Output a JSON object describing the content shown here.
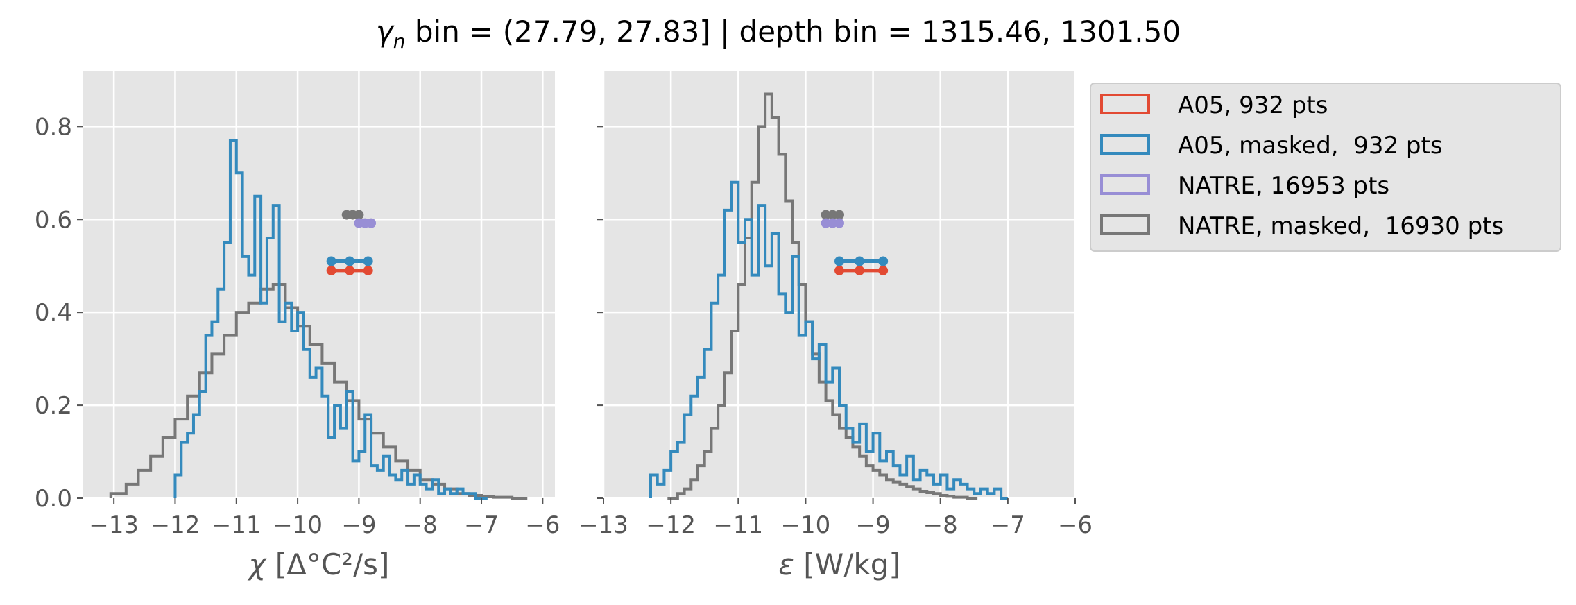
{
  "figure": {
    "title_symbol": "γ",
    "title_sub": "n",
    "title_rest": " bin = (27.79, 27.83] | depth bin = 1315.46, 1301.50"
  },
  "colors": {
    "A05": "#E24A33",
    "A05_masked": "#348ABD",
    "NATRE": "#988ED5",
    "NATRE_masked": "#777777",
    "axes_bg": "#E5E5E5",
    "grid": "#FFFFFF",
    "tick_text": "#555555"
  },
  "legend": {
    "placement": "outside right, top",
    "entries": [
      {
        "label": "A05, 932 pts",
        "color_key": "A05"
      },
      {
        "label": "A05, masked,  932 pts",
        "color_key": "A05_masked"
      },
      {
        "label": "NATRE, 16953 pts",
        "color_key": "NATRE"
      },
      {
        "label": "NATRE, masked,  16930 pts",
        "color_key": "NATRE_masked"
      }
    ]
  },
  "chart_data": [
    {
      "type": "histogram-step",
      "panel": "left",
      "xlabel_symbol": "χ",
      "xlabel_rest": " [Δ°C²/s]",
      "ylabel": "",
      "xlim": [
        -13.5,
        -5.8
      ],
      "ylim": [
        0,
        0.92
      ],
      "xticks": [
        -13,
        -12,
        -11,
        -10,
        -9,
        -8,
        -7,
        -6
      ],
      "xtick_labels": [
        "−13",
        "−12",
        "−11",
        "−10",
        "−9",
        "−8",
        "−7",
        "−6"
      ],
      "yticks": [
        0.0,
        0.2,
        0.4,
        0.6,
        0.8
      ],
      "ytick_labels": [
        "0.0",
        "0.2",
        "0.4",
        "0.6",
        "0.8"
      ],
      "grid": true,
      "series": [
        {
          "name": "NATRE, masked,  16930 pts",
          "color_key": "NATRE_masked",
          "x": [
            -13.05,
            -12.8,
            -12.6,
            -12.4,
            -12.2,
            -12.0,
            -11.8,
            -11.6,
            -11.4,
            -11.2,
            -11.0,
            -10.8,
            -10.6,
            -10.4,
            -10.2,
            -10.0,
            -9.8,
            -9.6,
            -9.4,
            -9.2,
            -9.0,
            -8.8,
            -8.6,
            -8.4,
            -8.2,
            -8.0,
            -7.8,
            -7.6,
            -7.4,
            -7.2,
            -7.0,
            -6.8,
            -6.5
          ],
          "y": [
            0.01,
            0.03,
            0.06,
            0.09,
            0.13,
            0.17,
            0.22,
            0.27,
            0.31,
            0.35,
            0.4,
            0.42,
            0.45,
            0.46,
            0.41,
            0.37,
            0.33,
            0.29,
            0.25,
            0.21,
            0.17,
            0.14,
            0.11,
            0.08,
            0.06,
            0.04,
            0.03,
            0.02,
            0.01,
            0.006,
            0.003,
            0.002,
            0.0
          ]
        },
        {
          "name": "A05, masked,  932 pts",
          "color_key": "A05_masked",
          "x": [
            -12.0,
            -11.9,
            -11.8,
            -11.7,
            -11.6,
            -11.5,
            -11.4,
            -11.3,
            -11.2,
            -11.1,
            -11.0,
            -10.9,
            -10.8,
            -10.7,
            -10.6,
            -10.5,
            -10.4,
            -10.3,
            -10.2,
            -10.1,
            -10.0,
            -9.9,
            -9.8,
            -9.7,
            -9.6,
            -9.5,
            -9.4,
            -9.3,
            -9.2,
            -9.1,
            -9.0,
            -8.9,
            -8.8,
            -8.7,
            -8.6,
            -8.5,
            -8.4,
            -8.3,
            -8.2,
            -8.1,
            -8.0,
            -7.9,
            -7.8,
            -7.7,
            -7.6,
            -7.5,
            -7.4,
            -7.3,
            -7.2,
            -7.1,
            -7.0
          ],
          "y": [
            0.05,
            0.12,
            0.14,
            0.18,
            0.23,
            0.35,
            0.38,
            0.45,
            0.55,
            0.77,
            0.7,
            0.52,
            0.48,
            0.65,
            0.42,
            0.56,
            0.63,
            0.38,
            0.42,
            0.36,
            0.4,
            0.32,
            0.26,
            0.28,
            0.22,
            0.13,
            0.2,
            0.15,
            0.23,
            0.08,
            0.1,
            0.18,
            0.07,
            0.06,
            0.09,
            0.05,
            0.04,
            0.06,
            0.03,
            0.05,
            0.03,
            0.02,
            0.04,
            0.01,
            0.02,
            0.01,
            0.02,
            0.01,
            0.01,
            0.0,
            0.0
          ]
        }
      ],
      "error_bars": [
        {
          "name": "NATRE, masked,  16930 pts",
          "color_key": "NATRE_masked",
          "y": 0.61,
          "x": [
            -9.2,
            -9.1,
            -9.0
          ]
        },
        {
          "name": "NATRE, 16953 pts",
          "color_key": "NATRE",
          "y": 0.592,
          "x": [
            -9.0,
            -8.9,
            -8.8
          ]
        },
        {
          "name": "A05, masked,  932 pts",
          "color_key": "A05_masked",
          "y": 0.51,
          "x": [
            -9.45,
            -9.15,
            -8.85
          ]
        },
        {
          "name": "A05, 932 pts",
          "color_key": "A05",
          "y": 0.49,
          "x": [
            -9.45,
            -9.15,
            -8.85
          ]
        }
      ]
    },
    {
      "type": "histogram-step",
      "panel": "right",
      "xlabel_symbol": "ε",
      "xlabel_rest": " [W/kg]",
      "ylabel": "",
      "xlim": [
        -13.0,
        -6.0
      ],
      "ylim": [
        0,
        0.92
      ],
      "xticks": [
        -13,
        -12,
        -11,
        -10,
        -9,
        -8,
        -7,
        -6
      ],
      "xtick_labels": [
        "−13",
        "−12",
        "−11",
        "−10",
        "−9",
        "−8",
        "−7",
        "−6"
      ],
      "yticks": [
        0.0,
        0.2,
        0.4,
        0.6,
        0.8
      ],
      "grid": true,
      "series": [
        {
          "name": "NATRE, masked,  16930 pts",
          "color_key": "NATRE_masked",
          "x": [
            -12.05,
            -11.9,
            -11.8,
            -11.7,
            -11.6,
            -11.5,
            -11.4,
            -11.3,
            -11.2,
            -11.1,
            -11.0,
            -10.9,
            -10.8,
            -10.7,
            -10.6,
            -10.5,
            -10.4,
            -10.3,
            -10.2,
            -10.1,
            -10.0,
            -9.9,
            -9.8,
            -9.7,
            -9.6,
            -9.5,
            -9.4,
            -9.3,
            -9.2,
            -9.1,
            -9.0,
            -8.9,
            -8.8,
            -8.7,
            -8.6,
            -8.5,
            -8.4,
            -8.3,
            -8.2,
            -8.1,
            -8.0,
            -7.9,
            -7.8,
            -7.6
          ],
          "y": [
            0.0,
            0.01,
            0.02,
            0.04,
            0.07,
            0.1,
            0.15,
            0.2,
            0.27,
            0.36,
            0.46,
            0.56,
            0.68,
            0.8,
            0.87,
            0.82,
            0.74,
            0.64,
            0.55,
            0.46,
            0.38,
            0.31,
            0.25,
            0.21,
            0.18,
            0.15,
            0.13,
            0.11,
            0.09,
            0.07,
            0.06,
            0.05,
            0.04,
            0.035,
            0.03,
            0.025,
            0.02,
            0.015,
            0.012,
            0.01,
            0.006,
            0.004,
            0.002,
            0.0
          ]
        },
        {
          "name": "A05, masked,  932 pts",
          "color_key": "A05_masked",
          "x": [
            -12.3,
            -12.2,
            -12.1,
            -12.0,
            -11.9,
            -11.8,
            -11.7,
            -11.6,
            -11.5,
            -11.4,
            -11.3,
            -11.2,
            -11.1,
            -11.0,
            -10.9,
            -10.8,
            -10.7,
            -10.6,
            -10.5,
            -10.4,
            -10.3,
            -10.2,
            -10.1,
            -10.0,
            -9.9,
            -9.8,
            -9.7,
            -9.6,
            -9.5,
            -9.4,
            -9.3,
            -9.2,
            -9.1,
            -9.0,
            -8.9,
            -8.8,
            -8.7,
            -8.6,
            -8.5,
            -8.4,
            -8.3,
            -8.2,
            -8.1,
            -8.0,
            -7.9,
            -7.8,
            -7.7,
            -7.6,
            -7.5,
            -7.4,
            -7.3,
            -7.2,
            -7.1
          ],
          "y": [
            0.05,
            0.03,
            0.06,
            0.1,
            0.12,
            0.18,
            0.22,
            0.26,
            0.32,
            0.42,
            0.48,
            0.62,
            0.68,
            0.55,
            0.6,
            0.48,
            0.63,
            0.5,
            0.57,
            0.44,
            0.4,
            0.52,
            0.35,
            0.38,
            0.3,
            0.33,
            0.25,
            0.28,
            0.2,
            0.15,
            0.12,
            0.16,
            0.1,
            0.14,
            0.08,
            0.1,
            0.07,
            0.05,
            0.09,
            0.04,
            0.06,
            0.05,
            0.03,
            0.05,
            0.02,
            0.04,
            0.03,
            0.02,
            0.01,
            0.02,
            0.01,
            0.02,
            0.0
          ]
        }
      ],
      "error_bars": [
        {
          "name": "NATRE, masked,  16930 pts",
          "color_key": "NATRE_masked",
          "y": 0.61,
          "x": [
            -9.7,
            -9.6,
            -9.5
          ]
        },
        {
          "name": "NATRE, 16953 pts",
          "color_key": "NATRE",
          "y": 0.592,
          "x": [
            -9.7,
            -9.6,
            -9.5
          ]
        },
        {
          "name": "A05, masked,  932 pts",
          "color_key": "A05_masked",
          "y": 0.51,
          "x": [
            -9.5,
            -9.2,
            -8.85
          ]
        },
        {
          "name": "A05, 932 pts",
          "color_key": "A05",
          "y": 0.49,
          "x": [
            -9.5,
            -9.2,
            -8.85
          ]
        }
      ]
    }
  ]
}
